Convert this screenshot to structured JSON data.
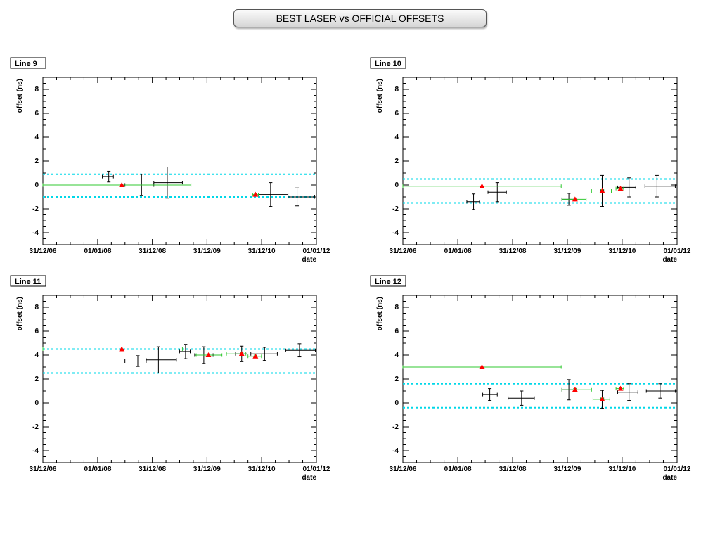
{
  "title": "BEST LASER vs OFFICIAL OFFSETS",
  "chart_data": [
    {
      "type": "scatter",
      "panel_label": "Line 9",
      "xlabel": "date",
      "ylabel": "offset (ns)",
      "x_ticks": [
        "31/12/06",
        "01/01/08",
        "31/12/08",
        "31/12/09",
        "31/12/10",
        "01/01/12"
      ],
      "y_ticks": [
        "-4",
        "-2",
        "0",
        "2",
        "4",
        "6",
        "8"
      ],
      "xlim": [
        "2006-12-31",
        "2012-01-01"
      ],
      "ylim": [
        -5,
        9
      ],
      "band": {
        "upper": 0.9,
        "lower": -1.0,
        "color": "#00d8e8"
      },
      "series": [
        {
          "marker": "triangle",
          "color": "#ff0000",
          "error_color": "#30c830",
          "points": [
            {
              "x": "2008-06-10",
              "y": 0.0,
              "x_lo": "2006-12-31",
              "x_hi": "2009-09-15",
              "y_err": 0
            },
            {
              "x": "2010-11-20",
              "y": -0.8,
              "x_lo": "2010-11-01",
              "x_hi": "2010-12-10",
              "y_err": 0.1
            }
          ]
        },
        {
          "marker": "none",
          "color": "#000000",
          "points": [
            {
              "x": "2008-03-15",
              "y": 0.7,
              "x_lo": "2008-02-01",
              "x_hi": "2008-04-15",
              "y_err": 0.45
            },
            {
              "x": "2008-10-20",
              "y": 0.0,
              "x_lo": "2008-07-01",
              "x_hi": "2009-01-10",
              "y_err": 0.9
            },
            {
              "x": "2009-04-10",
              "y": 0.2,
              "x_lo": "2009-01-10",
              "x_hi": "2009-07-20",
              "y_err": 1.3
            },
            {
              "x": "2011-03-01",
              "y": -0.8,
              "x_lo": "2010-12-10",
              "x_hi": "2011-06-25",
              "y_err": 1.0
            },
            {
              "x": "2011-08-25",
              "y": -1.0,
              "x_lo": "2011-06-25",
              "x_hi": "2011-12-20",
              "y_err": 0.75
            }
          ]
        }
      ]
    },
    {
      "type": "scatter",
      "panel_label": "Line 10",
      "xlabel": "date",
      "ylabel": "offset (ns)",
      "x_ticks": [
        "31/12/06",
        "01/01/08",
        "31/12/08",
        "31/12/09",
        "31/12/10",
        "01/01/12"
      ],
      "y_ticks": [
        "-4",
        "-2",
        "0",
        "2",
        "4",
        "6",
        "8"
      ],
      "xlim": [
        "2006-12-31",
        "2012-01-01"
      ],
      "ylim": [
        -5,
        9
      ],
      "band": {
        "upper": 0.5,
        "lower": -1.5,
        "color": "#00d8e8"
      },
      "series": [
        {
          "marker": "triangle",
          "color": "#ff0000",
          "error_color": "#30c830",
          "points": [
            {
              "x": "2008-06-10",
              "y": -0.1,
              "x_lo": "2006-12-31",
              "x_hi": "2009-11-20",
              "y_err": 0
            },
            {
              "x": "2010-02-20",
              "y": -1.2,
              "x_lo": "2009-11-25",
              "x_hi": "2010-05-05",
              "y_err": 0.1
            },
            {
              "x": "2010-08-20",
              "y": -0.5,
              "x_lo": "2010-06-10",
              "x_hi": "2010-10-20",
              "y_err": 0.1
            },
            {
              "x": "2010-12-20",
              "y": -0.3,
              "x_lo": "2010-11-20",
              "x_hi": "2011-01-10",
              "y_err": 0.1
            }
          ]
        },
        {
          "marker": "none",
          "color": "#000000",
          "points": [
            {
              "x": "2008-04-15",
              "y": -1.4,
              "x_lo": "2008-03-01",
              "x_hi": "2008-05-25",
              "y_err": 0.65
            },
            {
              "x": "2008-09-20",
              "y": -0.6,
              "x_lo": "2008-07-20",
              "x_hi": "2008-11-20",
              "y_err": 0.8
            },
            {
              "x": "2010-01-10",
              "y": -1.2,
              "x_lo": "2009-11-25",
              "x_hi": "2010-02-25",
              "y_err": 0.5
            },
            {
              "x": "2010-08-20",
              "y": -0.5,
              "x_lo": "2010-08-10",
              "x_hi": "2010-08-30",
              "y_err": 1.3
            },
            {
              "x": "2011-02-15",
              "y": -0.2,
              "x_lo": "2010-12-01",
              "x_hi": "2011-04-01",
              "y_err": 0.8
            },
            {
              "x": "2011-08-20",
              "y": -0.1,
              "x_lo": "2011-06-01",
              "x_hi": "2011-12-20",
              "y_err": 0.9
            }
          ]
        }
      ]
    },
    {
      "type": "scatter",
      "panel_label": "Line 11",
      "xlabel": "date",
      "ylabel": "offset (ns)",
      "x_ticks": [
        "31/12/06",
        "01/01/08",
        "31/12/08",
        "31/12/09",
        "31/12/10",
        "01/01/12"
      ],
      "y_ticks": [
        "-4",
        "-2",
        "0",
        "2",
        "4",
        "6",
        "8"
      ],
      "xlim": [
        "2006-12-31",
        "2012-01-01"
      ],
      "ylim": [
        -5,
        9
      ],
      "band": {
        "upper": 4.5,
        "lower": 2.5,
        "color": "#00d8e8"
      },
      "series": [
        {
          "marker": "triangle",
          "color": "#ff0000",
          "error_color": "#30c830",
          "points": [
            {
              "x": "2008-06-10",
              "y": 4.5,
              "x_lo": "2006-12-31",
              "x_hi": "2009-07-20",
              "y_err": 0
            },
            {
              "x": "2010-01-10",
              "y": 4.0,
              "x_lo": "2009-10-20",
              "x_hi": "2010-04-10",
              "y_err": 0.1
            },
            {
              "x": "2010-08-20",
              "y": 4.1,
              "x_lo": "2010-05-10",
              "x_hi": "2010-09-15",
              "y_err": 0.1
            },
            {
              "x": "2010-11-20",
              "y": 3.9,
              "x_lo": "2010-10-01",
              "x_hi": "2010-12-30",
              "y_err": 0.1
            }
          ]
        },
        {
          "marker": "none",
          "color": "#000000",
          "points": [
            {
              "x": "2008-09-25",
              "y": 3.5,
              "x_lo": "2008-07-01",
              "x_hi": "2008-11-20",
              "y_err": 0.45
            },
            {
              "x": "2009-02-10",
              "y": 3.6,
              "x_lo": "2008-11-20",
              "x_hi": "2009-06-10",
              "y_err": 1.1
            },
            {
              "x": "2009-08-10",
              "y": 4.3,
              "x_lo": "2009-07-01",
              "x_hi": "2009-09-10",
              "y_err": 0.6
            },
            {
              "x": "2009-12-10",
              "y": 4.0,
              "x_lo": "2009-10-10",
              "x_hi": "2010-02-10",
              "y_err": 0.7
            },
            {
              "x": "2010-08-20",
              "y": 4.1,
              "x_lo": "2010-07-10",
              "x_hi": "2010-09-25",
              "y_err": 0.65
            },
            {
              "x": "2011-01-20",
              "y": 4.1,
              "x_lo": "2010-10-20",
              "x_hi": "2011-04-15",
              "y_err": 0.55
            },
            {
              "x": "2011-09-10",
              "y": 4.4,
              "x_lo": "2011-06-10",
              "x_hi": "2011-12-25",
              "y_err": 0.55
            }
          ]
        }
      ]
    },
    {
      "type": "scatter",
      "panel_label": "Line 12",
      "xlabel": "date",
      "ylabel": "offset (ns)",
      "x_ticks": [
        "31/12/06",
        "01/01/08",
        "31/12/08",
        "31/12/09",
        "31/12/10",
        "01/01/12"
      ],
      "y_ticks": [
        "-4",
        "-2",
        "0",
        "2",
        "4",
        "6",
        "8"
      ],
      "xlim": [
        "2006-12-31",
        "2012-01-01"
      ],
      "ylim": [
        -5,
        9
      ],
      "band": {
        "upper": 1.6,
        "lower": -0.4,
        "color": "#00d8e8"
      },
      "series": [
        {
          "marker": "triangle",
          "color": "#ff0000",
          "error_color": "#30c830",
          "points": [
            {
              "x": "2008-06-10",
              "y": 3.0,
              "x_lo": "2006-12-31",
              "x_hi": "2009-11-20",
              "y_err": 0
            },
            {
              "x": "2010-02-20",
              "y": 1.1,
              "x_lo": "2009-11-25",
              "x_hi": "2010-06-10",
              "y_err": 0.1
            },
            {
              "x": "2010-08-20",
              "y": 0.3,
              "x_lo": "2010-06-20",
              "x_hi": "2010-10-10",
              "y_err": 0.1
            },
            {
              "x": "2010-12-20",
              "y": 1.2,
              "x_lo": "2010-11-20",
              "x_hi": "2011-01-10",
              "y_err": 0.1
            }
          ]
        },
        {
          "marker": "none",
          "color": "#000000",
          "points": [
            {
              "x": "2008-08-01",
              "y": 0.7,
              "x_lo": "2008-06-15",
              "x_hi": "2008-09-20",
              "y_err": 0.5
            },
            {
              "x": "2009-03-01",
              "y": 0.4,
              "x_lo": "2008-12-01",
              "x_hi": "2009-05-25",
              "y_err": 0.6
            },
            {
              "x": "2010-01-10",
              "y": 1.1,
              "x_lo": "2009-11-25",
              "x_hi": "2010-02-25",
              "y_err": 0.85
            },
            {
              "x": "2010-08-20",
              "y": 0.3,
              "x_lo": "2010-08-10",
              "x_hi": "2010-08-30",
              "y_err": 0.75
            },
            {
              "x": "2011-02-15",
              "y": 0.9,
              "x_lo": "2010-12-01",
              "x_hi": "2011-04-15",
              "y_err": 0.7
            },
            {
              "x": "2011-09-10",
              "y": 1.0,
              "x_lo": "2011-06-10",
              "x_hi": "2011-12-20",
              "y_err": 0.6
            }
          ]
        }
      ]
    }
  ]
}
